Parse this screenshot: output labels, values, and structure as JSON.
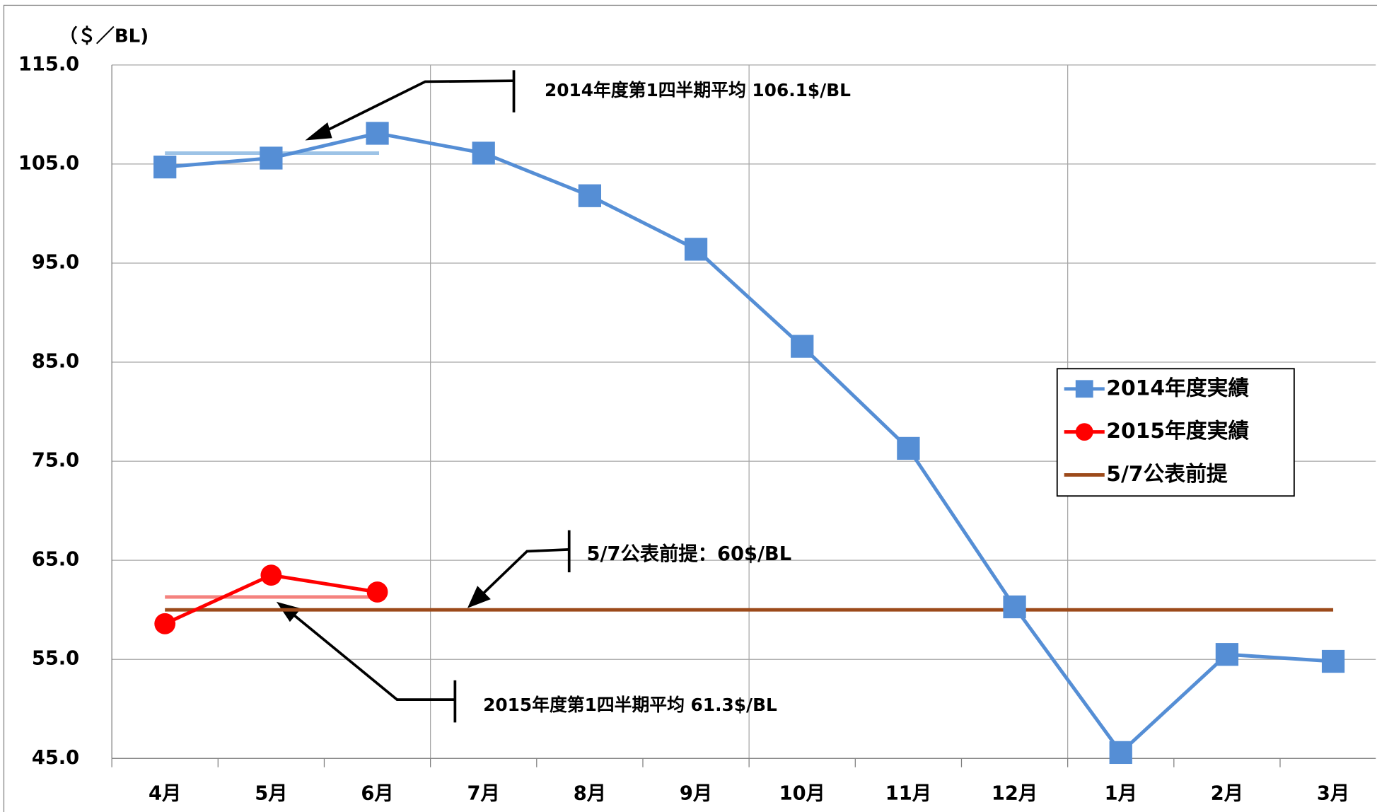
{
  "chart_data": {
    "type": "line",
    "y_axis_label": "（＄／BL)",
    "categories": [
      "4月",
      "5月",
      "6月",
      "7月",
      "8月",
      "9月",
      "10月",
      "11月",
      "12月",
      "1月",
      "2月",
      "3月"
    ],
    "series": [
      {
        "name": "2014年度実績",
        "color": "#558ed5",
        "marker": "square",
        "values": [
          104.7,
          105.6,
          108.1,
          106.1,
          101.8,
          96.4,
          86.6,
          76.3,
          60.3,
          45.6,
          55.5,
          54.8
        ]
      },
      {
        "name": "2015年度実績",
        "color": "#ff0000",
        "marker": "circle",
        "values": [
          58.6,
          63.5,
          61.8,
          null,
          null,
          null,
          null,
          null,
          null,
          null,
          null,
          null
        ]
      },
      {
        "name": "5/7公表前提",
        "color": "#9c4a1a",
        "marker": "none",
        "values": [
          60,
          60,
          60,
          60,
          60,
          60,
          60,
          60,
          60,
          60,
          60,
          60
        ]
      }
    ],
    "averages": [
      {
        "value": 106.1,
        "color": "#9dc3e6",
        "text": "2014年度第1四半期平均  106.1$/BL"
      },
      {
        "value": 61.3,
        "color": "#f4827e",
        "text": "2015年度第1四半期平均  61.3$/BL"
      }
    ],
    "premise_annotation": "5/7公表前提：60$/BL",
    "ylim": [
      45,
      115
    ],
    "yticks": [
      {
        "value": 45,
        "label": "45.0"
      },
      {
        "value": 55,
        "label": "55.0"
      },
      {
        "value": 65,
        "label": "65.0"
      },
      {
        "value": 75,
        "label": "75.0"
      },
      {
        "value": 85,
        "label": "85.0"
      },
      {
        "value": 95,
        "label": "95.0"
      },
      {
        "value": 105,
        "label": "105.0"
      },
      {
        "value": 115,
        "label": "115.0"
      }
    ],
    "grid": true
  }
}
